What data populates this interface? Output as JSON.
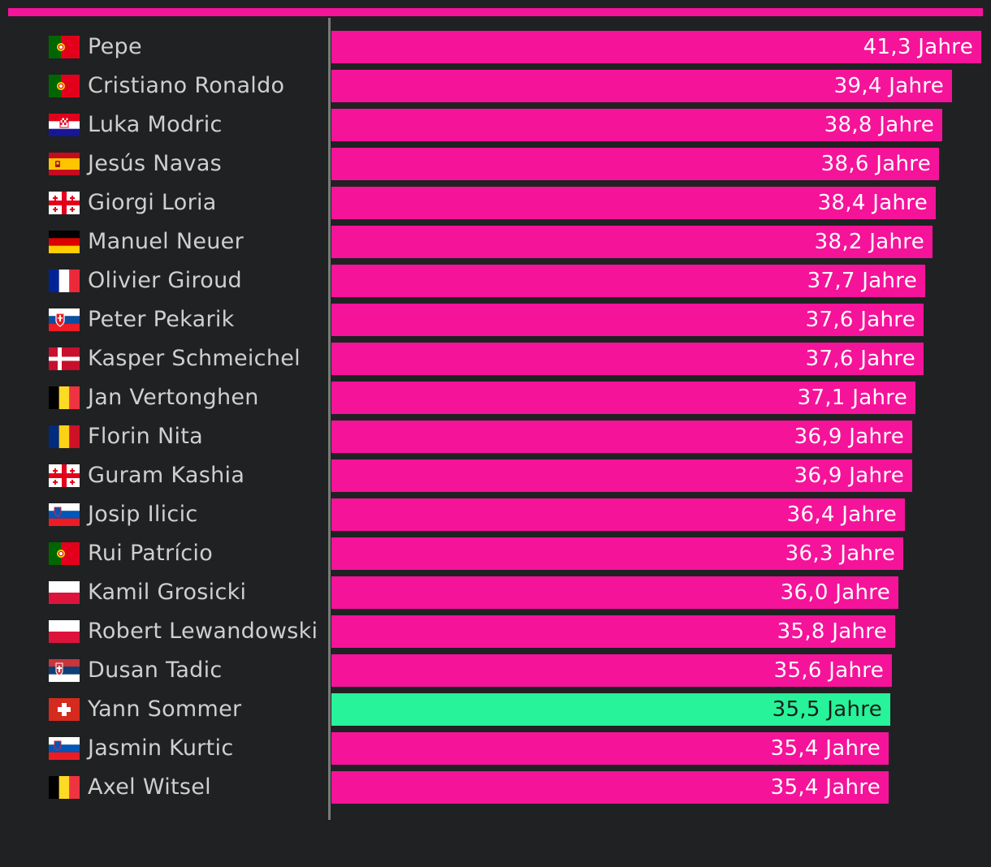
{
  "colors": {
    "background": "#202123",
    "bar": "#f5139a",
    "highlight": "#27f39a",
    "axis": "#7a7a7a",
    "label": "#cfcfcf"
  },
  "chart_data": {
    "type": "bar",
    "orientation": "horizontal",
    "value_suffix": " Jahre",
    "title": "",
    "xlabel": "",
    "ylabel": "",
    "xlim": [
      0,
      42.1
    ],
    "grid": false,
    "legend": "none",
    "series": [
      {
        "values": [
          41.3,
          39.4,
          38.8,
          38.6,
          38.4,
          38.2,
          37.7,
          37.6,
          37.6,
          37.1,
          36.9,
          36.9,
          36.4,
          36.3,
          36.0,
          35.8,
          35.6,
          35.5,
          35.4,
          35.4
        ]
      }
    ],
    "categories": [
      "Pepe",
      "Cristiano Ronaldo",
      "Luka Modric",
      "Jesús Navas",
      "Giorgi Loria",
      "Manuel Neuer",
      "Olivier Giroud",
      "Peter Pekarik",
      "Kasper Schmeichel",
      "Jan Vertonghen",
      "Florin Nita",
      "Guram Kashia",
      "Josip Ilicic",
      "Rui Patrício",
      "Kamil Grosicki",
      "Robert Lewandowski",
      "Dusan Tadic",
      "Yann Sommer",
      "Jasmin Kurtic",
      "Axel Witsel"
    ],
    "value_labels": [
      "41,3 Jahre",
      "39,4 Jahre",
      "38,8 Jahre",
      "38,6 Jahre",
      "38,4 Jahre",
      "38,2 Jahre",
      "37,7 Jahre",
      "37,6 Jahre",
      "37,6 Jahre",
      "37,1 Jahre",
      "36,9 Jahre",
      "36,9 Jahre",
      "36,4 Jahre",
      "36,3 Jahre",
      "36,0 Jahre",
      "35,8 Jahre",
      "35,6 Jahre",
      "35,5 Jahre",
      "35,4 Jahre",
      "35,4 Jahre"
    ],
    "flags": [
      "portugal-flag-icon",
      "portugal-flag-icon",
      "croatia-flag-icon",
      "spain-flag-icon",
      "georgia-flag-icon",
      "germany-flag-icon",
      "france-flag-icon",
      "slovakia-flag-icon",
      "denmark-flag-icon",
      "belgium-flag-icon",
      "romania-flag-icon",
      "georgia-flag-icon",
      "slovenia-flag-icon",
      "portugal-flag-icon",
      "poland-flag-icon",
      "poland-flag-icon",
      "serbia-flag-icon",
      "switzerland-flag-icon",
      "slovenia-flag-icon",
      "belgium-flag-icon"
    ],
    "highlight_category": "Yann Sommer"
  }
}
